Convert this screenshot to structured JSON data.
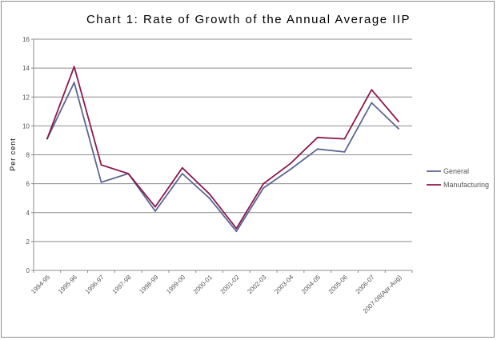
{
  "chart_data": {
    "type": "line",
    "title": "Chart 1: Rate of Growth of the Annual Average IIP",
    "xlabel": "",
    "ylabel": "Per cent",
    "ylim": [
      0,
      16
    ],
    "yticks": [
      0,
      2,
      4,
      6,
      8,
      10,
      12,
      14,
      16
    ],
    "grid": true,
    "legend_position": "right",
    "categories": [
      "1994-95",
      "1995-96",
      "1996-97",
      "1997-98",
      "1998-99",
      "1999-00",
      "2000-01",
      "2001-02",
      "2002-03",
      "2003-04",
      "2004-05",
      "2005-06",
      "2006-07",
      "2007-08(Apr-Aug)"
    ],
    "series": [
      {
        "name": "General",
        "color": "#5b6591",
        "values": [
          9.1,
          13.0,
          6.1,
          6.7,
          4.1,
          6.7,
          5.0,
          2.7,
          5.7,
          7.0,
          8.4,
          8.2,
          11.6,
          9.8
        ]
      },
      {
        "name": "Manufacturing",
        "color": "#8b1a4f",
        "values": [
          9.1,
          14.1,
          7.3,
          6.7,
          4.4,
          7.1,
          5.3,
          2.9,
          6.0,
          7.4,
          9.2,
          9.1,
          12.5,
          10.3
        ]
      }
    ]
  }
}
